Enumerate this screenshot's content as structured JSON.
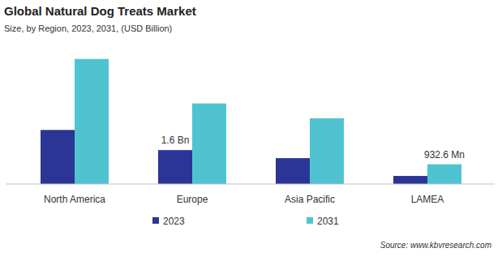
{
  "chart_data": {
    "type": "bar",
    "title": "Global Natural Dog Treats Market",
    "subtitle": "Size, by Region, 2023, 2031, (USD Billion)",
    "source": "Source: www.kbvresearch.com",
    "categories": [
      "North America",
      "Europe",
      "Asia Pacific",
      "LAMEA"
    ],
    "series": [
      {
        "name": "2023",
        "color": "#2b3595",
        "values": [
          2.55,
          1.6,
          1.22,
          0.38
        ],
        "value_labels": [
          null,
          "1.6 Bn",
          null,
          null
        ]
      },
      {
        "name": "2031",
        "color": "#4fc4d0",
        "values": [
          5.9,
          3.8,
          3.1,
          0.9326
        ],
        "value_labels": [
          null,
          null,
          null,
          "932.6 Mn"
        ]
      }
    ],
    "ylim": [
      0,
      7
    ],
    "data_labels": true,
    "tick_labels": "x",
    "grid": false,
    "legend": "bottom"
  }
}
